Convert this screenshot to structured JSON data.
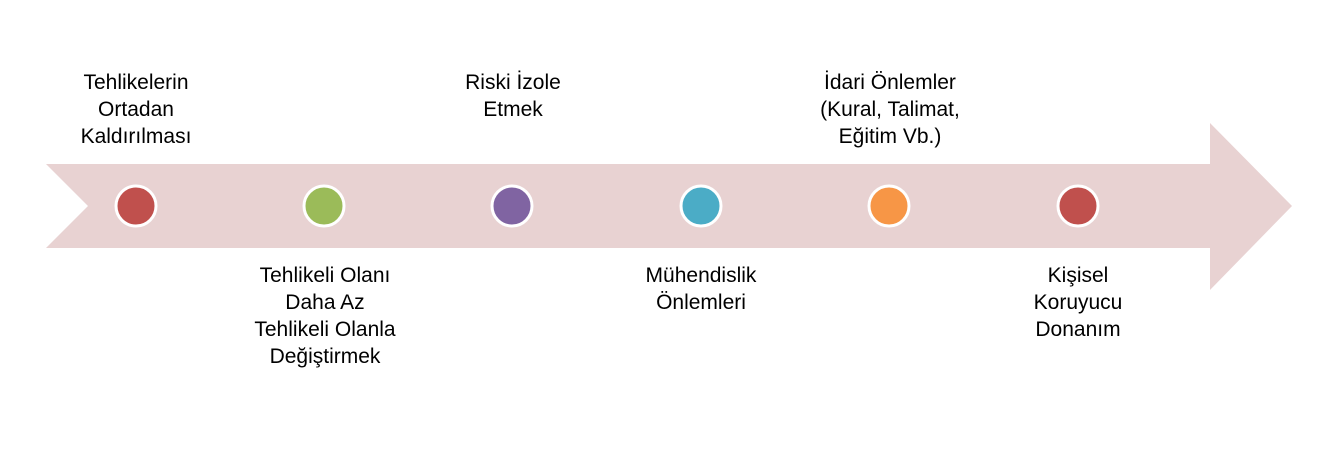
{
  "arrow_color": "#e8d2d2",
  "dot_border_color": "#ffffff",
  "steps": [
    {
      "label": "Tehlikelerin\nOrtadan\nKaldırılması",
      "color": "#c0504d"
    },
    {
      "label": "Tehlikeli Olanı\nDaha Az\nTehlikeli Olanla\nDeğiştirmek",
      "color": "#9bbb59"
    },
    {
      "label": "Riski İzole\nEtmek",
      "color": "#8064a2"
    },
    {
      "label": "Mühendislik\nÖnlemleri",
      "color": "#4bacc6"
    },
    {
      "label": "İdari Önlemler\n(Kural, Talimat,\nEğitim Vb.)",
      "color": "#f79646"
    },
    {
      "label": "Kişisel\nKoruyucu\nDonanım",
      "color": "#c0504d"
    }
  ]
}
